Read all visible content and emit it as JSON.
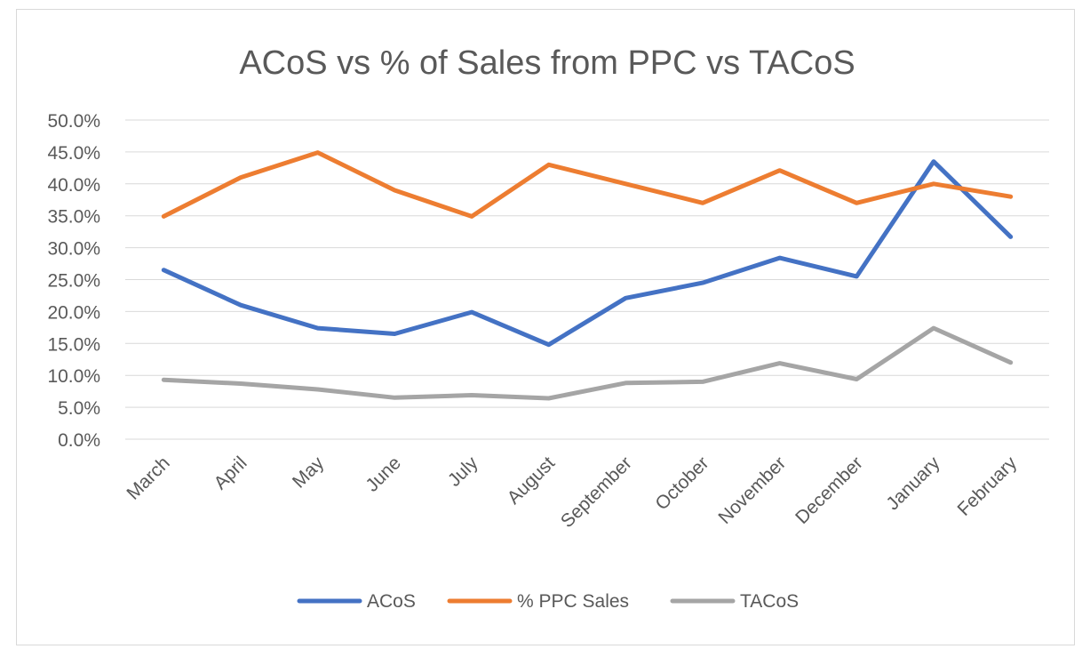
{
  "chart_data": {
    "type": "line",
    "title": "ACoS vs % of Sales from PPC vs TACoS",
    "xlabel": "",
    "ylabel": "",
    "categories": [
      "March",
      "April",
      "May",
      "June",
      "July",
      "August",
      "September",
      "October",
      "November",
      "December",
      "January",
      "February"
    ],
    "ylim": [
      0,
      50
    ],
    "yticks": [
      0,
      5,
      10,
      15,
      20,
      25,
      30,
      35,
      40,
      45,
      50
    ],
    "ytick_labels": [
      "0.0%",
      "5.0%",
      "10.0%",
      "15.0%",
      "20.0%",
      "25.0%",
      "30.0%",
      "35.0%",
      "40.0%",
      "45.0%",
      "50.0%"
    ],
    "grid": true,
    "legend_position": "bottom",
    "series": [
      {
        "name": "ACoS",
        "color": "#4472c4",
        "values": [
          26.5,
          21.0,
          17.4,
          16.5,
          19.9,
          14.8,
          22.1,
          24.5,
          28.4,
          25.5,
          43.5,
          31.7
        ]
      },
      {
        "name": "% PPC Sales",
        "color": "#ed7d31",
        "values": [
          34.9,
          41.0,
          44.9,
          39.0,
          34.9,
          43.0,
          40.0,
          37.0,
          42.1,
          37.0,
          40.0,
          38.0
        ]
      },
      {
        "name": "TACoS",
        "color": "#a5a5a5",
        "values": [
          9.3,
          8.7,
          7.8,
          6.5,
          6.9,
          6.4,
          8.8,
          9.0,
          11.9,
          9.4,
          17.4,
          12.0
        ]
      }
    ]
  }
}
